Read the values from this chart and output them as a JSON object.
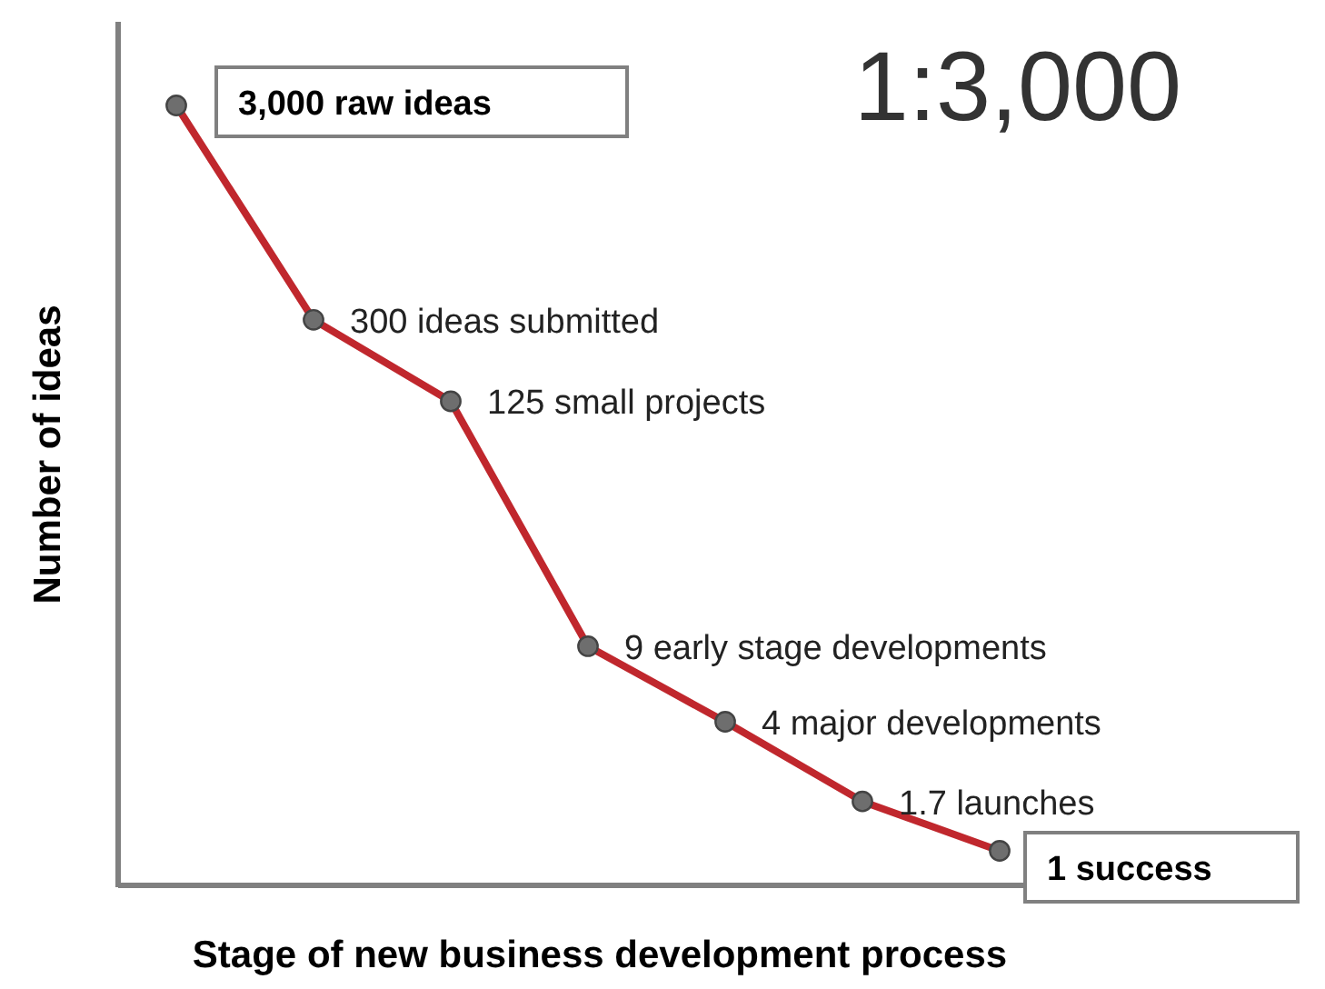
{
  "chart_data": {
    "type": "line",
    "xlabel": "Stage of new business development process",
    "ylabel": "Number of ideas",
    "categories": [
      null,
      null,
      null,
      null,
      null,
      null,
      null
    ],
    "series": [
      {
        "color": "#c0272d",
        "values": [
          3000,
          300,
          125,
          9,
          4,
          1.7,
          1
        ],
        "value_labels": [
          "3,000 raw ideas",
          "300 ideas submitted",
          "125 small projects",
          "9 early stage developments",
          "4 major developments",
          "1.7 launches",
          "1 success"
        ]
      }
    ],
    "log": true,
    "marker": "circle",
    "line_style": "solid",
    "annotations": [
      "1:3,000"
    ]
  }
}
